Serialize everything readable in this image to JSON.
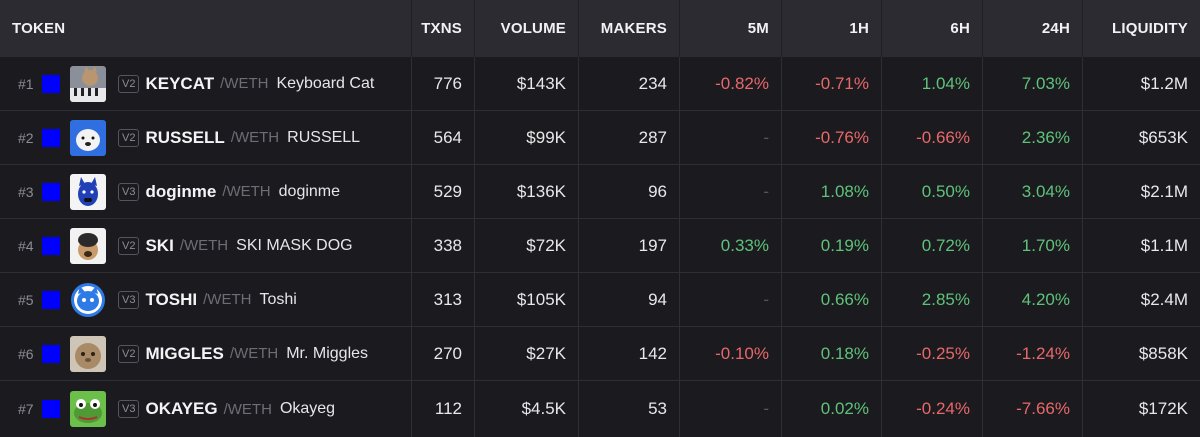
{
  "headers": {
    "token": "TOKEN",
    "txns": "TXNS",
    "volume": "VOLUME",
    "makers": "MAKERS",
    "m5": "5M",
    "h1": "1H",
    "h6": "6H",
    "h24": "24H",
    "liquidity": "LIQUIDITY"
  },
  "pair_separator": "/",
  "quote": "WETH",
  "rows": [
    {
      "rank": "#1",
      "version": "V2",
      "symbol": "KEYCAT",
      "name": "Keyboard Cat",
      "txns": "776",
      "volume": "$143K",
      "makers": "234",
      "m5": "-0.82%",
      "h1": "-0.71%",
      "h6": "1.04%",
      "h24": "7.03%",
      "liquidity": "$1.2M"
    },
    {
      "rank": "#2",
      "version": "V2",
      "symbol": "RUSSELL",
      "name": "RUSSELL",
      "txns": "564",
      "volume": "$99K",
      "makers": "287",
      "m5": "-",
      "h1": "-0.76%",
      "h6": "-0.66%",
      "h24": "2.36%",
      "liquidity": "$653K"
    },
    {
      "rank": "#3",
      "version": "V3",
      "symbol": "doginme",
      "name": "doginme",
      "txns": "529",
      "volume": "$136K",
      "makers": "96",
      "m5": "-",
      "h1": "1.08%",
      "h6": "0.50%",
      "h24": "3.04%",
      "liquidity": "$2.1M"
    },
    {
      "rank": "#4",
      "version": "V2",
      "symbol": "SKI",
      "name": "SKI MASK DOG",
      "txns": "338",
      "volume": "$72K",
      "makers": "197",
      "m5": "0.33%",
      "h1": "0.19%",
      "h6": "0.72%",
      "h24": "1.70%",
      "liquidity": "$1.1M"
    },
    {
      "rank": "#5",
      "version": "V3",
      "symbol": "TOSHI",
      "name": "Toshi",
      "txns": "313",
      "volume": "$105K",
      "makers": "94",
      "m5": "-",
      "h1": "0.66%",
      "h6": "2.85%",
      "h24": "4.20%",
      "liquidity": "$2.4M"
    },
    {
      "rank": "#6",
      "version": "V2",
      "symbol": "MIGGLES",
      "name": "Mr. Miggles",
      "txns": "270",
      "volume": "$27K",
      "makers": "142",
      "m5": "-0.10%",
      "h1": "0.18%",
      "h6": "-0.25%",
      "h24": "-1.24%",
      "liquidity": "$858K"
    },
    {
      "rank": "#7",
      "version": "V3",
      "symbol": "OKAYEG",
      "name": "Okayeg",
      "txns": "112",
      "volume": "$4.5K",
      "makers": "53",
      "m5": "-",
      "h1": "0.02%",
      "h6": "-0.24%",
      "h24": "-7.66%",
      "liquidity": "$172K"
    }
  ],
  "colors": {
    "positive": "#5fc27a",
    "negative": "#e8686a",
    "chain_badge": "#0000ff"
  },
  "icons": [
    "keycat-avatar-icon",
    "russell-avatar-icon",
    "doginme-avatar-icon",
    "ski-avatar-icon",
    "toshi-avatar-icon",
    "miggles-avatar-icon",
    "okayeg-avatar-icon"
  ]
}
